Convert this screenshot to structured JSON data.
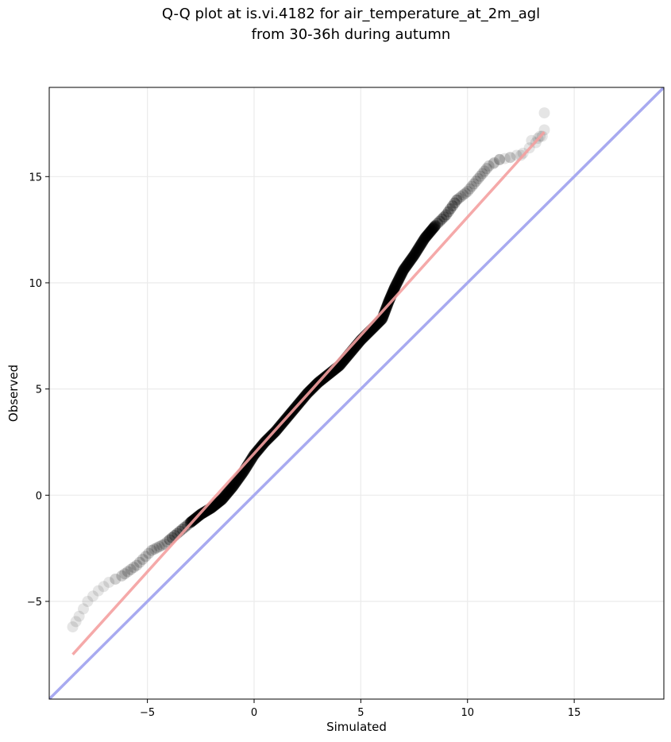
{
  "chart_data": {
    "type": "scatter",
    "title_lines": [
      "Q-Q plot at is.vi.4182 for air_temperature_at_2m_agl",
      "from 30-36h during autumn"
    ],
    "xlabel": "Simulated",
    "ylabel": "Observed",
    "xlim": [
      -9.6,
      19.2
    ],
    "ylim": [
      -9.6,
      19.2
    ],
    "xticks": [
      -5,
      0,
      5,
      10,
      15
    ],
    "yticks": [
      -5,
      0,
      5,
      10,
      15
    ],
    "xtick_labels": [
      "−5",
      "0",
      "5",
      "10",
      "15"
    ],
    "ytick_labels": [
      "−5",
      "0",
      "5",
      "10",
      "15"
    ],
    "grid": true,
    "point_color": "#000000",
    "fit_line": {
      "x": [
        -8.5,
        13.6
      ],
      "y": [
        -7.5,
        17.1
      ],
      "color": "#f4a0a0"
    },
    "identity_line": {
      "x": [
        -9.6,
        19.2
      ],
      "y": [
        -9.6,
        19.2
      ],
      "color": "#a8aaf0"
    },
    "quantile_curve": {
      "x": [
        -8.5,
        -8.2,
        -7.8,
        -7.3,
        -6.8,
        -6.2,
        -5.5,
        -4.8,
        -4.2,
        -3.6,
        -3.0,
        -2.5,
        -2.0,
        -1.5,
        -1.0,
        -0.5,
        0.0,
        0.5,
        1.0,
        1.5,
        2.0,
        2.5,
        3.0,
        3.5,
        4.0,
        4.5,
        5.0,
        5.5,
        6.0,
        6.3,
        6.6,
        7.0,
        7.5,
        8.0,
        8.5,
        9.0,
        9.5,
        10.0,
        10.5,
        11.0,
        11.5,
        12.0,
        12.6,
        13.2,
        13.6
      ],
      "y": [
        -6.2,
        -5.7,
        -5.0,
        -4.5,
        -4.1,
        -3.8,
        -3.3,
        -2.6,
        -2.3,
        -1.8,
        -1.3,
        -0.9,
        -0.6,
        -0.2,
        0.4,
        1.1,
        1.9,
        2.5,
        3.0,
        3.6,
        4.2,
        4.8,
        5.3,
        5.7,
        6.1,
        6.7,
        7.3,
        7.8,
        8.3,
        9.1,
        9.8,
        10.6,
        11.3,
        12.1,
        12.7,
        13.2,
        13.9,
        14.3,
        14.9,
        15.5,
        15.8,
        15.9,
        16.1,
        16.6,
        17.2
      ]
    },
    "outliers": {
      "x": [
        11.2,
        11.5,
        12.0,
        12.5,
        13.0,
        13.3,
        13.5,
        13.6
      ],
      "y": [
        15.6,
        15.8,
        15.9,
        16.0,
        16.7,
        16.8,
        16.9,
        18.0
      ]
    }
  }
}
